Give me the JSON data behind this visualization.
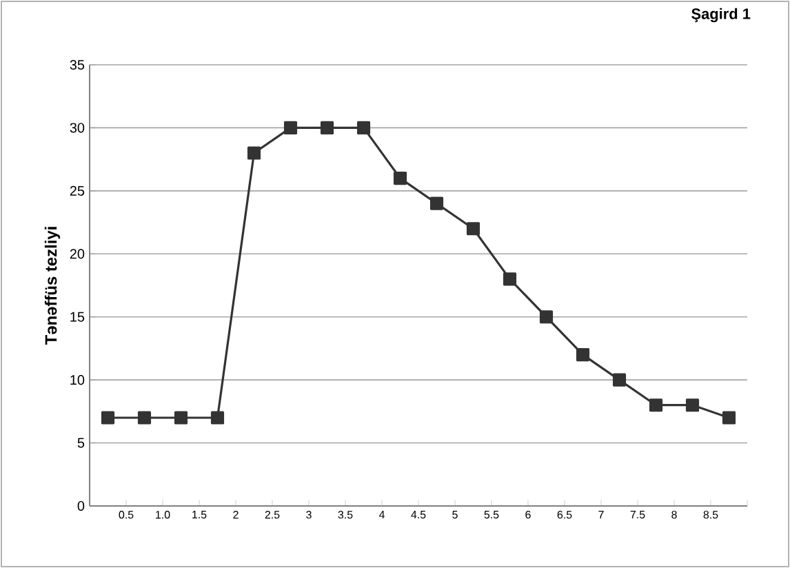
{
  "chart_data": {
    "type": "line",
    "title": "Şagird 1",
    "ylabel": "Tənəffüs tezliyi",
    "x": [
      0.25,
      0.75,
      1.25,
      1.75,
      2.25,
      2.75,
      3.25,
      3.75,
      4.25,
      4.75,
      5.25,
      5.75,
      6.25,
      6.75,
      7.25,
      7.75,
      8.25,
      8.75
    ],
    "series": [
      {
        "color": "#333333",
        "values": [
          7,
          7,
          7,
          7,
          28,
          30,
          30,
          30,
          26,
          24,
          22,
          18,
          15,
          12,
          10,
          8,
          8,
          7
        ]
      }
    ],
    "xlim": [
      0,
      9
    ],
    "xticks": [
      {
        "value": 0,
        "label": null
      },
      0.5,
      {
        "value": 1,
        "label": "1.0"
      },
      1.5,
      2,
      2.5,
      3,
      3.5,
      4,
      4.5,
      5,
      5.5,
      6,
      6.5,
      7,
      7.5,
      8,
      8.5,
      {
        "value": 9,
        "label": null
      }
    ],
    "ylim": [
      0,
      35
    ],
    "yticks": [
      0,
      5,
      10,
      15,
      20,
      25,
      30,
      35
    ],
    "grid": "y",
    "marker": "square",
    "line_style": "solid"
  }
}
